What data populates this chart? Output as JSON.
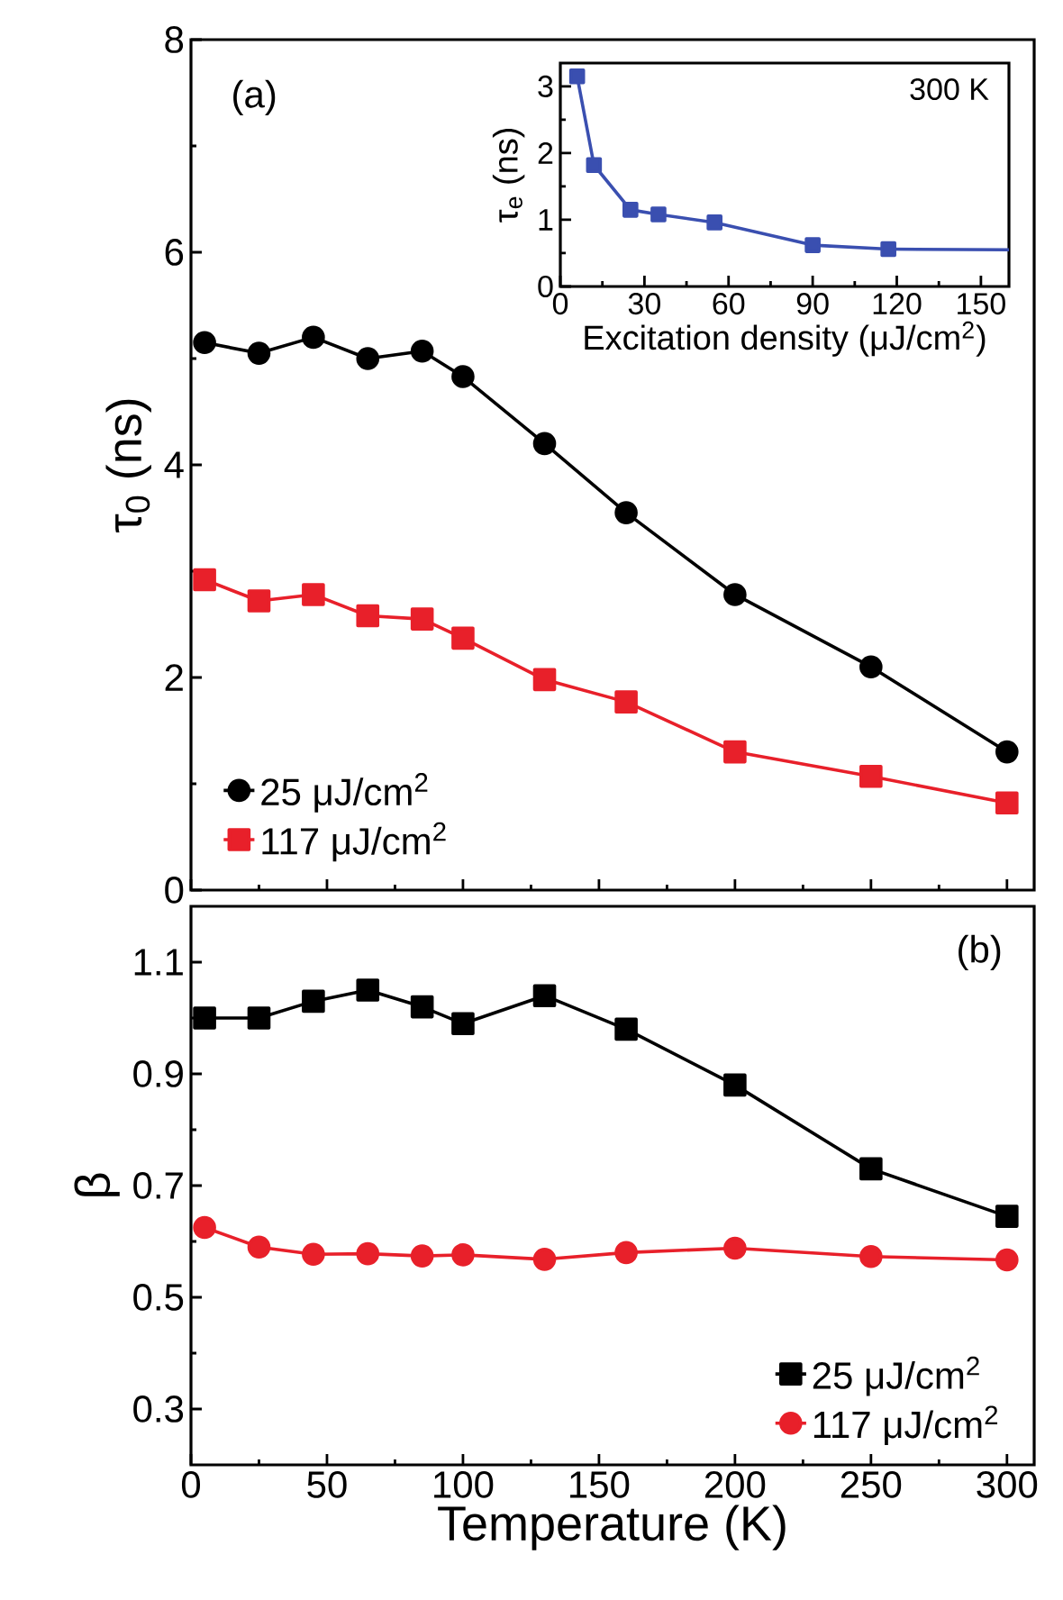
{
  "chart_data": [
    {
      "type": "line",
      "ylabel": "τ$_{0}$ (ns)",
      "x": [
        5,
        25,
        45,
        65,
        85,
        100,
        130,
        160,
        200,
        250,
        300
      ],
      "xlim": [
        0,
        310
      ],
      "xticks": [
        0,
        50,
        100,
        150,
        200,
        250,
        300
      ],
      "ylim": [
        0,
        8
      ],
      "yticks": [
        0,
        2,
        4,
        6,
        8
      ],
      "tick_labels": "y",
      "legend": "bottom left",
      "annotations": [
        "(a)"
      ],
      "series": [
        {
          "name": "25 μJ/cm$^{2}$",
          "color": "#000000",
          "marker": "circle",
          "values": [
            5.15,
            5.05,
            5.2,
            5.0,
            5.07,
            4.83,
            4.2,
            3.55,
            2.78,
            2.1,
            1.3
          ]
        },
        {
          "name": "117 μJ/cm$^{2}$",
          "color": "#e8202a",
          "marker": "square",
          "values": [
            2.92,
            2.72,
            2.78,
            2.58,
            2.55,
            2.37,
            1.98,
            1.77,
            1.3,
            1.07,
            0.82
          ]
        }
      ]
    },
    {
      "type": "line",
      "xlabel": "Excitation density (μJ/cm$^{2}$)",
      "ylabel": "τ$_{e}$ (ns)",
      "xlim": [
        0,
        160
      ],
      "xticks": [
        0,
        30,
        60,
        90,
        120,
        150
      ],
      "ylim": [
        0,
        3.35
      ],
      "yticks": [
        0,
        1,
        2,
        3
      ],
      "legend": false,
      "annotations": [
        "300 K"
      ],
      "series": [
        {
          "color": "#3a4fb0",
          "marker": "square",
          "x": [
            6,
            12,
            25,
            35,
            55,
            90,
            117
          ],
          "values": [
            3.15,
            1.82,
            1.15,
            1.08,
            0.96,
            0.62,
            0.56
          ]
        },
        {
          "color": "#3a4fb0",
          "marker": "none",
          "x": [
            117,
            160
          ],
          "values": [
            0.56,
            0.55
          ]
        }
      ]
    },
    {
      "type": "line",
      "xlabel": "Temperature (K)",
      "ylabel": "β",
      "x": [
        5,
        25,
        45,
        65,
        85,
        100,
        130,
        160,
        200,
        250,
        300
      ],
      "xlim": [
        0,
        310
      ],
      "xticks": [
        0,
        50,
        100,
        150,
        200,
        250,
        300
      ],
      "ylim": [
        0.2,
        1.2
      ],
      "yticks": [
        0.3,
        0.5,
        0.7,
        0.9,
        1.1
      ],
      "legend": "bottom right",
      "annotations": [
        "(b)"
      ],
      "series": [
        {
          "name": "25 μJ/cm$^{2}$",
          "color": "#000000",
          "marker": "square",
          "values": [
            1.0,
            1.0,
            1.03,
            1.05,
            1.02,
            0.99,
            1.04,
            0.98,
            0.88,
            0.73,
            0.645
          ]
        },
        {
          "name": "117 μJ/cm$^{2}$",
          "color": "#e8202a",
          "marker": "circle",
          "values": [
            0.625,
            0.59,
            0.577,
            0.578,
            0.574,
            0.576,
            0.568,
            0.58,
            0.588,
            0.573,
            0.567
          ]
        }
      ]
    }
  ]
}
